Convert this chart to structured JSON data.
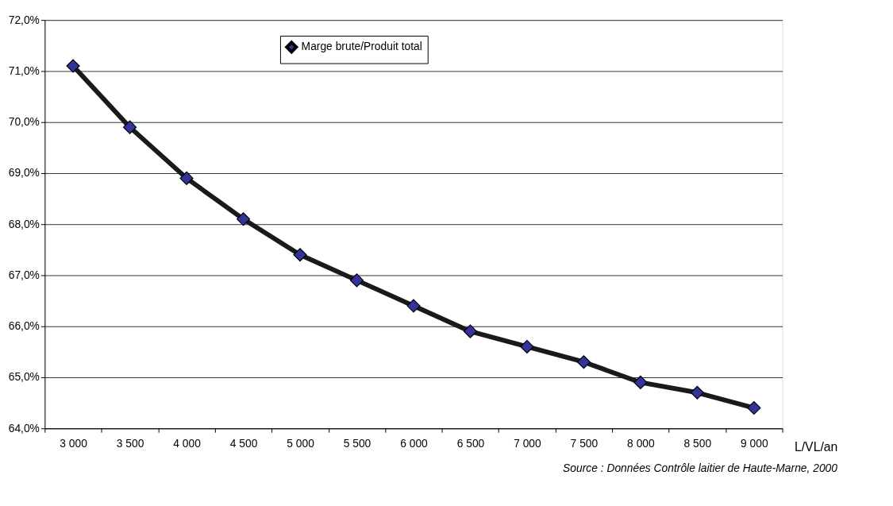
{
  "chart_data": {
    "type": "line",
    "categories": [
      "3 000",
      "3 500",
      "4 000",
      "4 500",
      "5 000",
      "5 500",
      "6 000",
      "6 500",
      "7 000",
      "7 500",
      "8 000",
      "8 500",
      "9 000"
    ],
    "series": [
      {
        "name": "Marge brute/Produit total",
        "color": "#333399",
        "values": [
          71.1,
          69.9,
          68.9,
          68.1,
          67.4,
          66.9,
          66.4,
          65.9,
          65.6,
          65.3,
          64.9,
          64.7,
          64.4
        ]
      }
    ],
    "xlabel": "L/VL/an",
    "ylim": [
      64,
      72
    ],
    "yticks": [
      {
        "value": 64,
        "label": "64,0%"
      },
      {
        "value": 65,
        "label": "65,0%"
      },
      {
        "value": 66,
        "label": "66,0%"
      },
      {
        "value": 67,
        "label": "67,0%"
      },
      {
        "value": 68,
        "label": "68,0%"
      },
      {
        "value": 69,
        "label": "69,0%"
      },
      {
        "value": 70,
        "label": "70,0%"
      },
      {
        "value": 71,
        "label": "71,0%"
      },
      {
        "value": 72,
        "label": "72,0%"
      }
    ],
    "grid": "y",
    "legend": "top",
    "marker": "diamond",
    "line_style": "solid",
    "annotations": [
      "Source : Données Contrôle laitier de Haute-Marne, 2000"
    ]
  }
}
